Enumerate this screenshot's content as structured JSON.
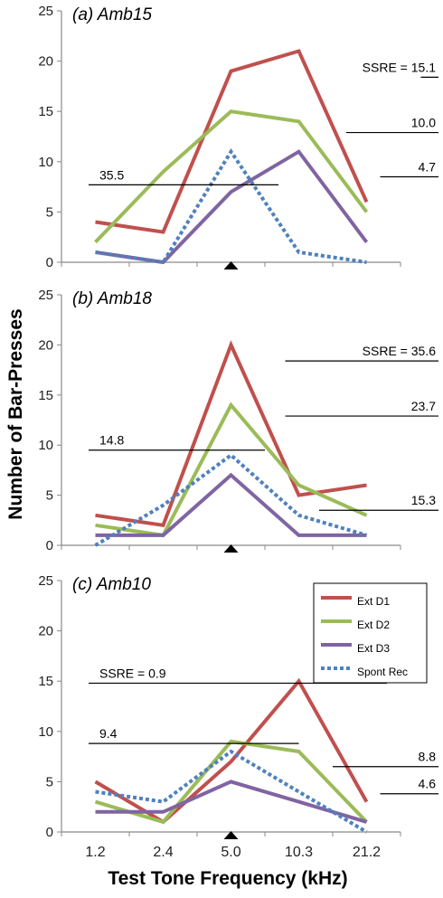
{
  "chart_data": {
    "type": "line",
    "xlabel": "Test Tone Frequency (kHz)",
    "ylabel": "Number of Bar-Presses",
    "categories": [
      "1.2",
      "2.4",
      "5.0",
      "10.3",
      "21.2"
    ],
    "legend": {
      "placement": "top-right of panel (c)",
      "entries": [
        "Ext D1",
        "Ext D2",
        "Ext D3",
        "Spont Rec"
      ]
    },
    "series_style": [
      {
        "name": "Ext D1",
        "color": "#C0504D",
        "dash": false
      },
      {
        "name": "Ext D2",
        "color": "#9BBB59",
        "dash": false
      },
      {
        "name": "Ext D3",
        "color": "#8064A2",
        "dash": false
      },
      {
        "name": "Spont Rec",
        "color": "#4F81BD",
        "dash": true
      }
    ],
    "marker_category": "5.0",
    "panels": [
      {
        "title": "(a) Amb15",
        "ylim": [
          0,
          25
        ],
        "yticks": [
          0,
          5,
          10,
          15,
          20,
          25
        ],
        "series": [
          {
            "name": "Ext D1",
            "values": [
              4,
              3,
              19,
              21,
              6
            ]
          },
          {
            "name": "Ext D2",
            "values": [
              2,
              9,
              15,
              14,
              5
            ]
          },
          {
            "name": "Ext D3",
            "values": [
              1,
              0,
              7,
              11,
              2
            ]
          },
          {
            "name": "Spont Rec",
            "values": [
              1,
              0,
              11,
              1,
              0
            ]
          }
        ],
        "annotations": [
          {
            "text": "SSRE = 15.1",
            "line": [
              5.3,
              18.4,
              6.3,
              18.4
            ]
          },
          {
            "text": "10.0",
            "line": [
              4.2,
              12.9,
              6.3,
              12.9
            ]
          },
          {
            "text": "4.7",
            "line": [
              4.7,
              8.5,
              6.3,
              8.5
            ]
          },
          {
            "text": "35.5",
            "line": [
              0.4,
              7.7,
              3.2,
              7.7
            ]
          }
        ]
      },
      {
        "title": "(b) Amb18",
        "ylim": [
          0,
          25
        ],
        "yticks": [
          0,
          5,
          10,
          15,
          20,
          25
        ],
        "series": [
          {
            "name": "Ext D1",
            "values": [
              3,
              2,
              20,
              5,
              6
            ]
          },
          {
            "name": "Ext D2",
            "values": [
              2,
              1,
              14,
              6,
              3
            ]
          },
          {
            "name": "Ext D3",
            "values": [
              1,
              1,
              7,
              1,
              1
            ]
          },
          {
            "name": "Spont Rec",
            "values": [
              0,
              4,
              9,
              3,
              1
            ]
          }
        ],
        "annotations": [
          {
            "text": "SSRE = 35.6",
            "line": [
              3.3,
              18.4,
              6.3,
              18.4
            ]
          },
          {
            "text": "23.7",
            "line": [
              3.3,
              12.9,
              6.3,
              12.9
            ]
          },
          {
            "text": "15.3",
            "line": [
              3.8,
              3.5,
              6.3,
              3.5
            ]
          },
          {
            "text": "14.8",
            "line": [
              0.4,
              9.5,
              3.0,
              9.5
            ]
          }
        ]
      },
      {
        "title": "(c) Amb10",
        "ylim": [
          0,
          25
        ],
        "yticks": [
          0,
          5,
          10,
          15,
          20,
          25
        ],
        "series": [
          {
            "name": "Ext D1",
            "values": [
              5,
              1,
              7,
              15,
              3
            ]
          },
          {
            "name": "Ext D2",
            "values": [
              3,
              1,
              9,
              8,
              1
            ]
          },
          {
            "name": "Ext D3",
            "values": [
              2,
              2,
              5,
              3,
              1
            ]
          },
          {
            "name": "Spont Rec",
            "values": [
              4,
              3,
              8,
              4,
              0
            ]
          }
        ],
        "annotations": [
          {
            "text": "SSRE = 0.9",
            "line": [
              0.4,
              14.8,
              4.8,
              14.8
            ]
          },
          {
            "text": "9.4",
            "line": [
              0.4,
              8.8,
              3.5,
              8.8
            ]
          },
          {
            "text": "8.8",
            "line": [
              4.0,
              6.5,
              6.3,
              6.5
            ]
          },
          {
            "text": "4.6",
            "line": [
              4.7,
              3.8,
              6.3,
              3.8
            ]
          }
        ]
      }
    ]
  }
}
